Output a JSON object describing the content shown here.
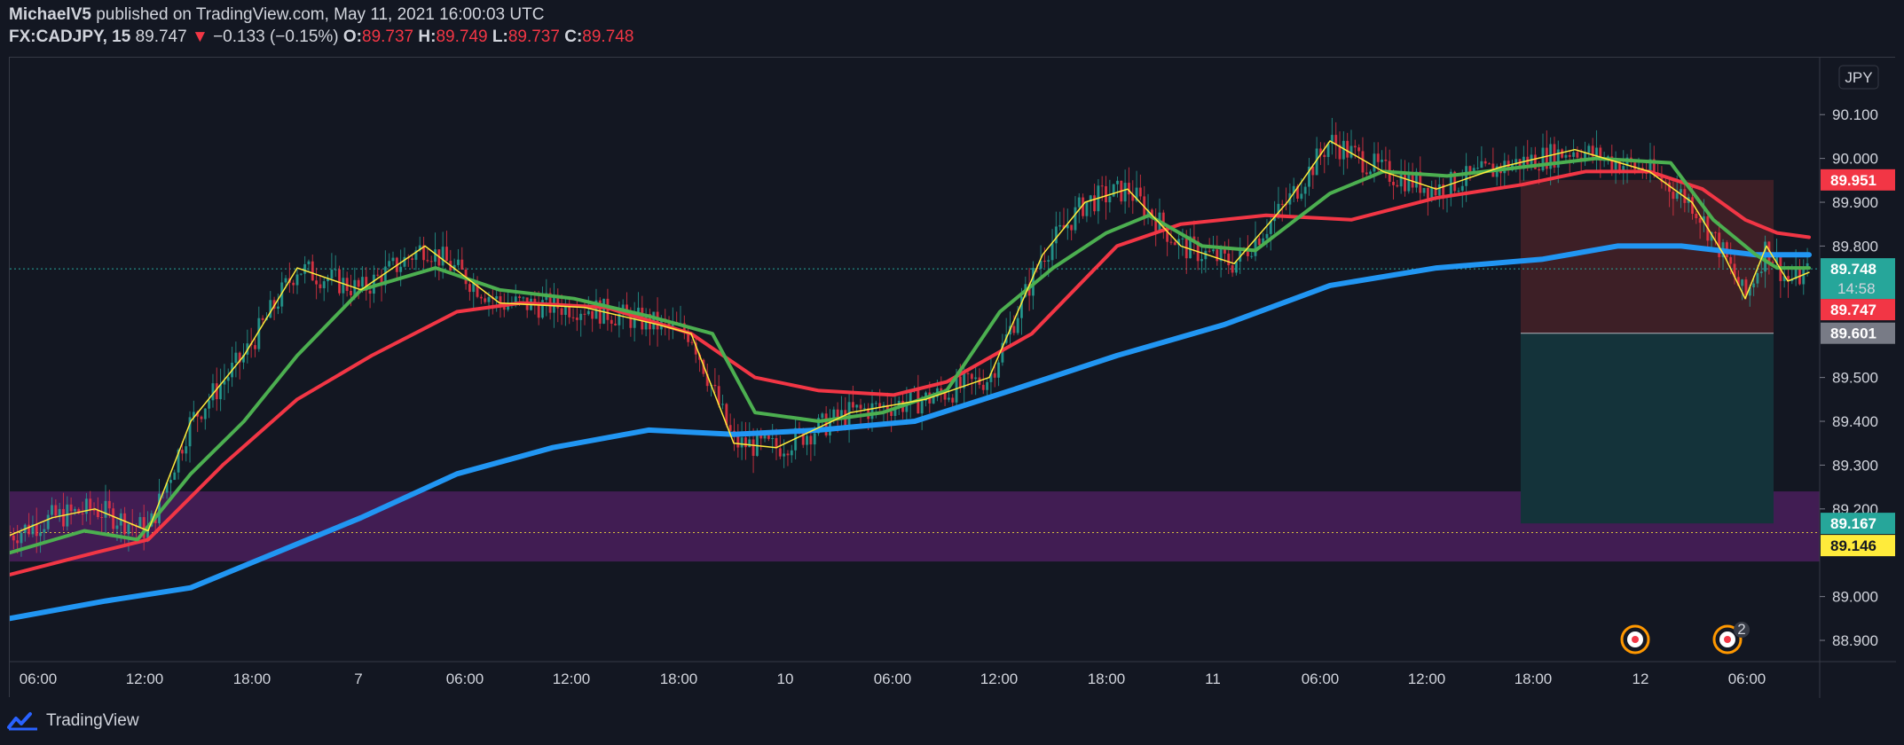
{
  "header": {
    "publisher": "MichaelV5",
    "published_text": "published on TradingView.com, May 11, 2021 16:00:03 UTC",
    "symbol": "FX:CADJPY, 15",
    "last": "89.747",
    "change": "−0.133 (−0.15%)",
    "o_label": "O:",
    "o_value": "89.737",
    "h_label": "H:",
    "h_value": "89.749",
    "l_label": "L:",
    "l_value": "89.737",
    "c_label": "C:",
    "c_value": "89.748"
  },
  "footer": {
    "brand": "TradingView"
  },
  "chart_data": {
    "type": "candlestick",
    "currency_label": "JPY",
    "ylim": [
      88.88,
      90.23
    ],
    "y_ticks": [
      "90.100",
      "90.000",
      "89.900",
      "89.800",
      "89.500",
      "89.400",
      "89.300",
      "89.200",
      "89.000",
      "88.900"
    ],
    "x_ticks": [
      "06:00",
      "12:00",
      "18:00",
      "7",
      "06:00",
      "12:00",
      "18:00",
      "10",
      "06:00",
      "12:00",
      "18:00",
      "11",
      "06:00",
      "12:00",
      "18:00",
      "12",
      "06:00"
    ],
    "price_tags": [
      {
        "label": "89.951",
        "color": "#f23645",
        "text_color": "#ffffff"
      },
      {
        "label": "89.748",
        "sub": "14:58",
        "color": "#26a69a",
        "text_color": "#ffffff"
      },
      {
        "label": "89.747",
        "color": "#f23645",
        "text_color": "#ffffff"
      },
      {
        "label": "89.601",
        "color": "#787b86",
        "text_color": "#ffffff"
      },
      {
        "label": "89.167",
        "color": "#26a69a",
        "text_color": "#ffffff"
      },
      {
        "label": "89.146",
        "color": "#ffeb3b",
        "text_color": "#131722"
      }
    ],
    "zones": [
      {
        "kind": "demand",
        "from": 89.08,
        "to": 89.24,
        "color": "#4a1f5c"
      },
      {
        "kind": "stop",
        "from": 89.601,
        "to": 89.951,
        "color": "#3d1f26"
      },
      {
        "kind": "target",
        "from": 89.167,
        "to": 89.601,
        "color": "#14333a"
      }
    ],
    "series": [
      {
        "color": "#2196f3",
        "points": [
          [
            0,
            88.95
          ],
          [
            90,
            88.99
          ],
          [
            170,
            89.02
          ],
          [
            250,
            89.1
          ],
          [
            330,
            89.18
          ],
          [
            420,
            89.28
          ],
          [
            510,
            89.34
          ],
          [
            600,
            89.38
          ],
          [
            680,
            89.37
          ],
          [
            760,
            89.38
          ],
          [
            850,
            89.4
          ],
          [
            940,
            89.47
          ],
          [
            1040,
            89.55
          ],
          [
            1140,
            89.62
          ],
          [
            1240,
            89.71
          ],
          [
            1340,
            89.75
          ],
          [
            1440,
            89.77
          ],
          [
            1510,
            89.8
          ],
          [
            1570,
            89.8
          ],
          [
            1640,
            89.78
          ],
          [
            1690,
            89.78
          ]
        ]
      },
      {
        "color": "#f23645",
        "points": [
          [
            0,
            89.05
          ],
          [
            80,
            89.1
          ],
          [
            130,
            89.13
          ],
          [
            200,
            89.3
          ],
          [
            270,
            89.45
          ],
          [
            340,
            89.55
          ],
          [
            420,
            89.65
          ],
          [
            480,
            89.67
          ],
          [
            560,
            89.66
          ],
          [
            640,
            89.6
          ],
          [
            700,
            89.5
          ],
          [
            760,
            89.47
          ],
          [
            830,
            89.46
          ],
          [
            880,
            89.49
          ],
          [
            960,
            89.6
          ],
          [
            1040,
            89.8
          ],
          [
            1100,
            89.85
          ],
          [
            1180,
            89.87
          ],
          [
            1260,
            89.86
          ],
          [
            1340,
            89.91
          ],
          [
            1420,
            89.94
          ],
          [
            1480,
            89.97
          ],
          [
            1540,
            89.97
          ],
          [
            1590,
            89.93
          ],
          [
            1630,
            89.86
          ],
          [
            1660,
            89.83
          ],
          [
            1690,
            89.82
          ]
        ]
      },
      {
        "color": "#4caf50",
        "points": [
          [
            0,
            89.1
          ],
          [
            70,
            89.15
          ],
          [
            120,
            89.13
          ],
          [
            170,
            89.28
          ],
          [
            220,
            89.4
          ],
          [
            270,
            89.55
          ],
          [
            330,
            89.7
          ],
          [
            400,
            89.75
          ],
          [
            460,
            89.7
          ],
          [
            530,
            89.68
          ],
          [
            600,
            89.64
          ],
          [
            660,
            89.6
          ],
          [
            700,
            89.42
          ],
          [
            760,
            89.4
          ],
          [
            820,
            89.42
          ],
          [
            880,
            89.47
          ],
          [
            930,
            89.65
          ],
          [
            980,
            89.75
          ],
          [
            1030,
            89.83
          ],
          [
            1070,
            89.87
          ],
          [
            1120,
            89.8
          ],
          [
            1170,
            89.79
          ],
          [
            1240,
            89.92
          ],
          [
            1290,
            89.97
          ],
          [
            1350,
            89.96
          ],
          [
            1420,
            89.98
          ],
          [
            1490,
            90.0
          ],
          [
            1560,
            89.99
          ],
          [
            1600,
            89.86
          ],
          [
            1640,
            89.78
          ],
          [
            1660,
            89.75
          ],
          [
            1690,
            89.75
          ]
        ]
      },
      {
        "color": "#ffeb3b",
        "points": [
          [
            0,
            89.14
          ],
          [
            40,
            89.18
          ],
          [
            80,
            89.2
          ],
          [
            130,
            89.15
          ],
          [
            170,
            89.4
          ],
          [
            220,
            89.55
          ],
          [
            270,
            89.75
          ],
          [
            330,
            89.7
          ],
          [
            390,
            89.8
          ],
          [
            460,
            89.67
          ],
          [
            540,
            89.66
          ],
          [
            610,
            89.62
          ],
          [
            640,
            89.6
          ],
          [
            680,
            89.35
          ],
          [
            720,
            89.34
          ],
          [
            790,
            89.42
          ],
          [
            860,
            89.45
          ],
          [
            920,
            89.5
          ],
          [
            970,
            89.78
          ],
          [
            1010,
            89.9
          ],
          [
            1050,
            89.93
          ],
          [
            1100,
            89.8
          ],
          [
            1150,
            89.76
          ],
          [
            1200,
            89.9
          ],
          [
            1240,
            90.04
          ],
          [
            1290,
            89.97
          ],
          [
            1340,
            89.93
          ],
          [
            1400,
            89.98
          ],
          [
            1470,
            90.02
          ],
          [
            1540,
            89.97
          ],
          [
            1580,
            89.9
          ],
          [
            1610,
            89.78
          ],
          [
            1630,
            89.68
          ],
          [
            1650,
            89.8
          ],
          [
            1670,
            89.72
          ],
          [
            1690,
            89.74
          ]
        ]
      }
    ]
  }
}
